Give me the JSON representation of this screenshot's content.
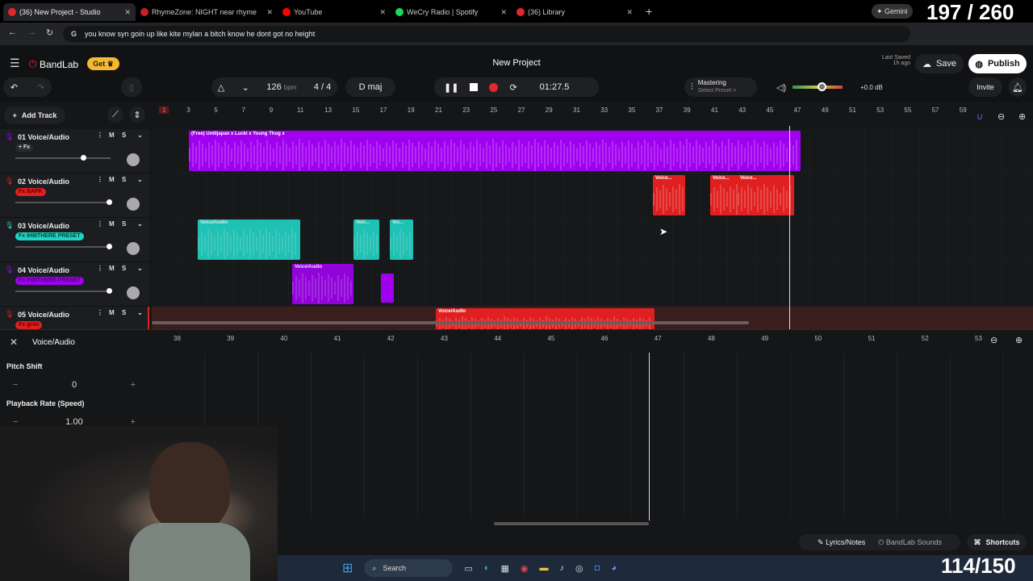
{
  "browser": {
    "tabs": [
      {
        "title": "(36) New Project - Studio",
        "color": "#e0282e"
      },
      {
        "title": "RhymeZone: NIGHT near rhyme",
        "color": "#c4202b"
      },
      {
        "title": "YouTube",
        "color": "#ff0000"
      },
      {
        "title": "WeCry Radio | Spotify",
        "color": "#1ed760"
      },
      {
        "title": "(36) Library",
        "color": "#e0282e"
      }
    ],
    "address": "you know syn goin up like kite mylan a bitch know he dont got no height",
    "gemini": "Gemini"
  },
  "overlay": {
    "top_counter": "197 / 260",
    "bottom_counter": "114/150"
  },
  "app": {
    "brand": "BandLab",
    "get_label": "Get",
    "project_title": "New Project",
    "last_saved_label": "Last Saved",
    "last_saved_value": "1h ago",
    "save": "Save",
    "publish": "Publish",
    "invite": "Invite"
  },
  "transport": {
    "bpm": "126",
    "bpm_unit": "bpm",
    "time_sig": "4 / 4",
    "key": "D maj",
    "time": "01:27.5",
    "mastering": "Mastering",
    "select_preset": "Select Preset >",
    "gain": "+0.0 dB",
    "master_volume": 0.6
  },
  "tracks_panel": {
    "add_track": "Add Track"
  },
  "tracks": [
    {
      "name": "01  Voice/Audio",
      "fx": "+ Fx",
      "color": "#a000f0",
      "fx_bg": "#2a2b2f",
      "fx_fg": "#ddd",
      "volume": 0.72
    },
    {
      "name": "02  Voice/Audio",
      "fx": "Fx BAFK",
      "color": "#e02020",
      "fx_bg": "#e02020",
      "fx_fg": "#5a0000",
      "volume": 1.0
    },
    {
      "name": "03  Voice/Audio",
      "fx": "Fx IH8ITHERE PRESET",
      "color": "#1fd4c4",
      "fx_bg": "#1fd4c4",
      "fx_fg": "#06403a",
      "volume": 1.0
    },
    {
      "name": "04  Voice/Audio",
      "fx": "Fx IH8ITHERE PRESET",
      "color": "#a000f0",
      "fx_bg": "#a000f0",
      "fx_fg": "#4a0070",
      "volume": 1.0
    },
    {
      "name": "05  Voice/Audio",
      "fx": "Fx grim",
      "color": "#e02020",
      "fx_bg": "#e02020",
      "fx_fg": "#5a0000",
      "volume": 1.0
    }
  ],
  "clips": [
    {
      "label": "(Free) Untiljapan x Lucki x Young Thug x",
      "track": 0
    },
    {
      "label": "Voice...",
      "track": 1
    },
    {
      "label": "Voice...",
      "track": 1
    },
    {
      "label": "Voice...",
      "track": 1
    },
    {
      "label": "Voice/Audio",
      "track": 2
    },
    {
      "label": "Voic...",
      "track": 2
    },
    {
      "label": "Voi...",
      "track": 2
    },
    {
      "label": "Voice/Audio",
      "track": 3
    },
    {
      "label": "Voice/Audio",
      "track": 4
    }
  ],
  "ruler_top": [
    "1",
    "3",
    "5",
    "7",
    "9",
    "11",
    "13",
    "15",
    "17",
    "19",
    "21",
    "23",
    "25",
    "27",
    "29",
    "31",
    "33",
    "35",
    "37",
    "39",
    "41",
    "43",
    "45",
    "47",
    "49",
    "51",
    "53",
    "55",
    "57",
    "59"
  ],
  "ruler_bottom": [
    "38",
    "39",
    "40",
    "41",
    "42",
    "43",
    "44",
    "45",
    "46",
    "47",
    "48",
    "49",
    "50",
    "51",
    "52",
    "53"
  ],
  "editor": {
    "title": "Voice/Audio",
    "pitch_label": "Pitch Shift",
    "pitch_value": "0",
    "rate_label": "Playback Rate (Speed)",
    "rate_value": "1.00"
  },
  "footer": {
    "lyrics": "Lyrics/Notes",
    "sounds": "BandLab Sounds",
    "shortcuts": "Shortcuts"
  },
  "taskbar": {
    "search": "Search"
  }
}
